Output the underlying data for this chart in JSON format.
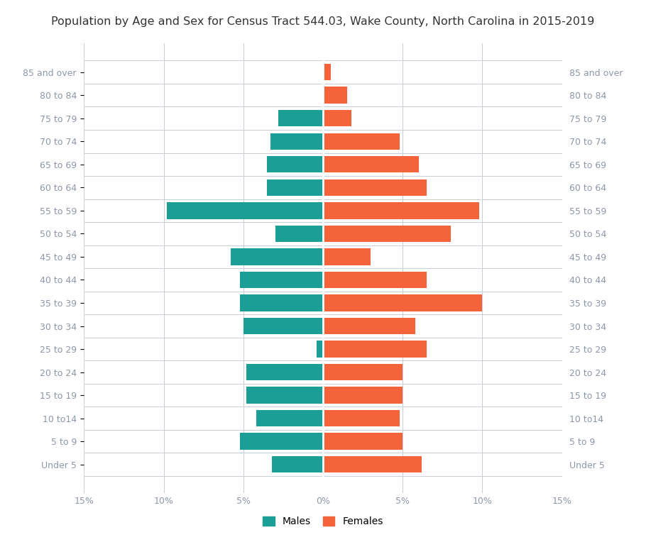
{
  "title": "Population by Age and Sex for Census Tract 544.03, Wake County, North Carolina in 2015-2019",
  "age_groups": [
    "Under 5",
    "5 to 9",
    "10 to14",
    "15 to 19",
    "20 to 24",
    "25 to 29",
    "30 to 34",
    "35 to 39",
    "40 to 44",
    "45 to 49",
    "50 to 54",
    "55 to 59",
    "60 to 64",
    "65 to 69",
    "70 to 74",
    "75 to 79",
    "80 to 84",
    "85 and over"
  ],
  "males": [
    3.2,
    5.2,
    4.2,
    4.8,
    4.8,
    0.4,
    5.0,
    5.2,
    5.2,
    5.8,
    3.0,
    9.8,
    3.5,
    3.5,
    3.3,
    2.8,
    0.0,
    0.0
  ],
  "females": [
    6.2,
    5.0,
    4.8,
    5.0,
    5.0,
    6.5,
    5.8,
    10.0,
    6.5,
    3.0,
    8.0,
    9.8,
    6.5,
    6.0,
    4.8,
    1.8,
    1.5,
    0.5
  ],
  "male_color": "#1A9E96",
  "female_color": "#F4633A",
  "background_color": "#FFFFFF",
  "grid_color": "#C8CDD6",
  "label_color": "#8C97A8",
  "title_color": "#333333",
  "xlim": 15,
  "xticks": [
    -15,
    -10,
    -5,
    0,
    5,
    10,
    15
  ],
  "xticklabels": [
    "15%",
    "10%",
    "5%",
    "0%",
    "5%",
    "10%",
    "15%"
  ]
}
